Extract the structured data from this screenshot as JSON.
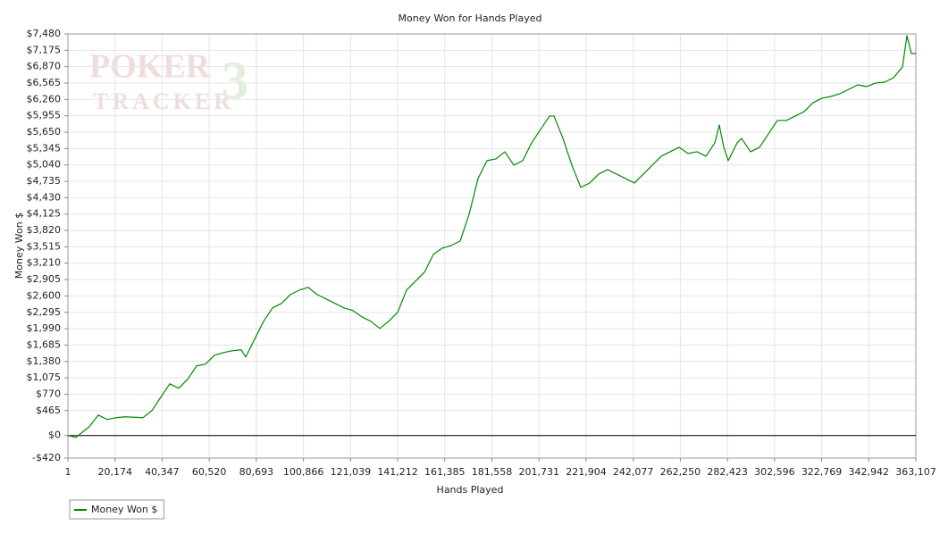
{
  "chart_data": {
    "type": "line",
    "title": "Money Won for Hands Played",
    "xlabel": "Hands Played",
    "ylabel": "Money Won $",
    "watermark": [
      "POKER",
      "TRACKER",
      "3"
    ],
    "grid": true,
    "legend": "bottom-left",
    "xlim": [
      1,
      363107
    ],
    "ylim": [
      -420,
      7480
    ],
    "xticks": [
      1,
      {
        "value": 20174,
        "label": "20,174"
      },
      {
        "value": 40347,
        "label": "40,347"
      },
      {
        "value": 60520,
        "label": "60,520"
      },
      {
        "value": 80693,
        "label": "80,693"
      },
      {
        "value": 100866,
        "label": "100,866"
      },
      {
        "value": 121039,
        "label": "121,039"
      },
      {
        "value": 141212,
        "label": "141,212"
      },
      {
        "value": 161385,
        "label": "161,385"
      },
      {
        "value": 181558,
        "label": "181,558"
      },
      {
        "value": 201731,
        "label": "201,731"
      },
      {
        "value": 221904,
        "label": "221,904"
      },
      {
        "value": 242077,
        "label": "242,077"
      },
      {
        "value": 262250,
        "label": "262,250"
      },
      {
        "value": 282423,
        "label": "282,423"
      },
      {
        "value": 302596,
        "label": "302,596"
      },
      {
        "value": 322769,
        "label": "322,769"
      },
      {
        "value": 342942,
        "label": "342,942"
      },
      {
        "value": 363107,
        "label": "363,107"
      }
    ],
    "yticks": [
      {
        "value": -420,
        "label": "-$420"
      },
      {
        "value": 0,
        "label": "$0"
      },
      {
        "value": 465,
        "label": "$465"
      },
      {
        "value": 770,
        "label": "$770"
      },
      {
        "value": 1075,
        "label": "$1,075"
      },
      {
        "value": 1380,
        "label": "$1,380"
      },
      {
        "value": 1685,
        "label": "$1,685"
      },
      {
        "value": 1990,
        "label": "$1,990"
      },
      {
        "value": 2295,
        "label": "$2,295"
      },
      {
        "value": 2600,
        "label": "$2,600"
      },
      {
        "value": 2905,
        "label": "$2,905"
      },
      {
        "value": 3210,
        "label": "$3,210"
      },
      {
        "value": 3515,
        "label": "$3,515"
      },
      {
        "value": 3820,
        "label": "$3,820"
      },
      {
        "value": 4125,
        "label": "$4,125"
      },
      {
        "value": 4430,
        "label": "$4,430"
      },
      {
        "value": 4735,
        "label": "$4,735"
      },
      {
        "value": 5040,
        "label": "$5,040"
      },
      {
        "value": 5345,
        "label": "$5,345"
      },
      {
        "value": 5650,
        "label": "$5,650"
      },
      {
        "value": 5955,
        "label": "$5,955"
      },
      {
        "value": 6260,
        "label": "$6,260"
      },
      {
        "value": 6565,
        "label": "$6,565"
      },
      {
        "value": 6870,
        "label": "$6,870"
      },
      {
        "value": 7175,
        "label": "$7,175"
      },
      {
        "value": 7480,
        "label": "$7,480"
      }
    ],
    "x": [
      1,
      3444,
      9183,
      13009,
      16835,
      20662,
      24488,
      32140,
      35966,
      39792,
      43619,
      47445,
      51271,
      55097,
      58923,
      62750,
      66576,
      70402,
      74228,
      76141,
      79967,
      83794,
      87620,
      91446,
      95272,
      99098,
      102925,
      106751,
      110577,
      114403,
      118229,
      122056,
      125882,
      129708,
      133534,
      137360,
      141187,
      145013,
      148839,
      152665,
      156491,
      160318,
      164144,
      167970,
      171796,
      175622,
      179449,
      183275,
      187101,
      190927,
      194753,
      198580,
      202406,
      206232,
      208145,
      211971,
      215797,
      219624,
      223450,
      227276,
      231102,
      234928,
      238755,
      242581,
      246407,
      250233,
      254059,
      257886,
      261712,
      265538,
      269364,
      273190,
      277017,
      278930,
      280843,
      282756,
      284669,
      286582,
      288495,
      292322,
      296148,
      299974,
      303800,
      307626,
      311453,
      315279,
      319105,
      322931,
      326757,
      330584,
      334410,
      338236,
      342062,
      345888,
      349715,
      353541,
      357367,
      359280,
      361193,
      363107
    ],
    "series": [
      {
        "name": "Money Won $",
        "color": "#008a00",
        "values": [
          0,
          -33,
          166,
          382,
          299,
          332,
          349,
          332,
          465,
          715,
          964,
          881,
          1047,
          1297,
          1330,
          1496,
          1546,
          1579,
          1596,
          1463,
          1795,
          2128,
          2377,
          2460,
          2626,
          2709,
          2759,
          2626,
          2543,
          2460,
          2377,
          2327,
          2211,
          2128,
          1995,
          2128,
          2294,
          2709,
          2876,
          3042,
          3374,
          3491,
          3540,
          3624,
          4122,
          4787,
          5120,
          5153,
          5286,
          5036,
          5120,
          5452,
          5701,
          5951,
          5951,
          5535,
          5036,
          4621,
          4704,
          4870,
          4953,
          4870,
          4787,
          4704,
          4870,
          5036,
          5203,
          5286,
          5369,
          5253,
          5286,
          5203,
          5452,
          5784,
          5369,
          5120,
          5286,
          5452,
          5535,
          5286,
          5369,
          5618,
          5868,
          5868,
          5951,
          6034,
          6200,
          6283,
          6316,
          6366,
          6449,
          6532,
          6499,
          6566,
          6582,
          6665,
          6865,
          7447,
          7114,
          7114
        ]
      }
    ]
  }
}
